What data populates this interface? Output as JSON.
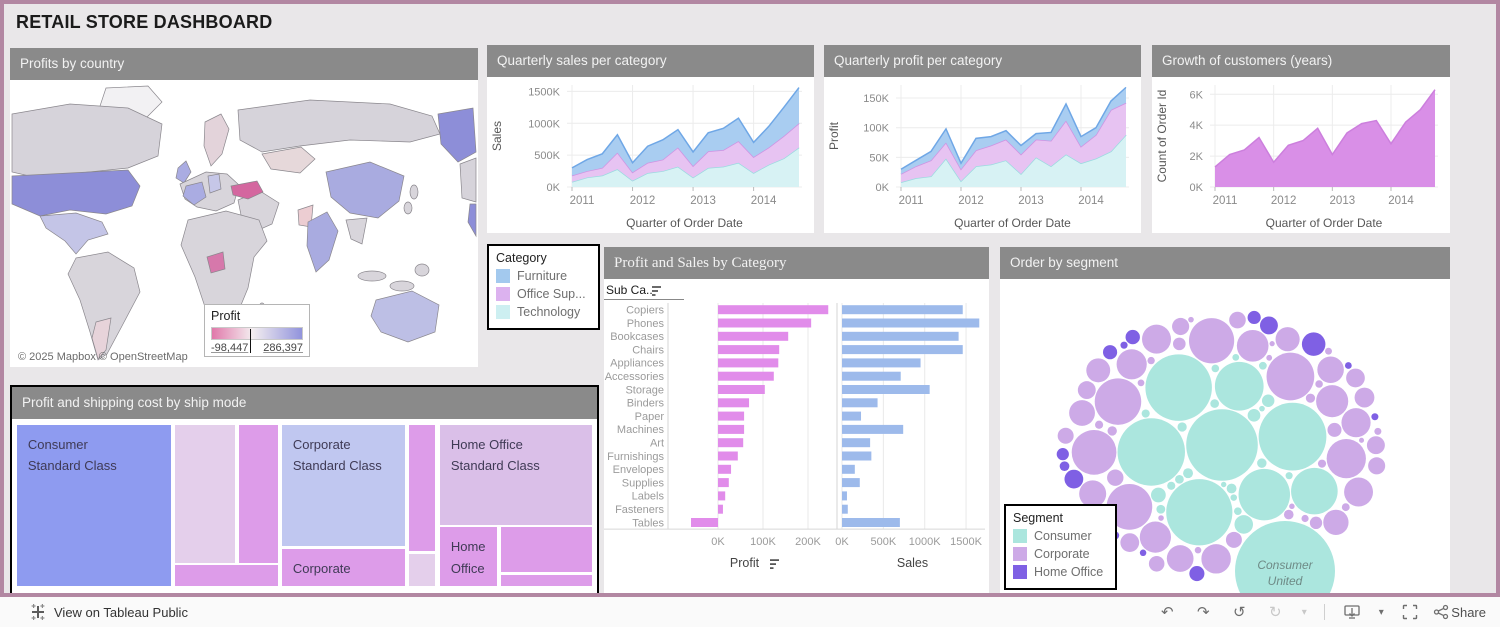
{
  "page": {
    "title": "RETAIL STORE DASHBOARD"
  },
  "map_panel": {
    "title": "Profits by country",
    "legend_title": "Profit",
    "legend_min": "-98,447",
    "legend_max": "286,397",
    "attribution": "© 2025 Mapbox © OpenStreetMap",
    "country_colors": {
      "usa": "#8d8ed8",
      "alaska": "#8d8ed8",
      "canada": "#d6d3da",
      "canada_e": "#d6d3da",
      "mexico": "#c4c5e7",
      "south_america": "#d8d5db",
      "argentina": "#e7d3da",
      "greenland": "#f2f1f3",
      "uk": "#aaace2",
      "europe": "#d8d5db",
      "france": "#aaace2",
      "germany": "#c6c7e8",
      "scandinavia": "#e3d3da",
      "russia": "#d6d3da",
      "kazakhstan": "#e6d8da",
      "mideast": "#d8d5db",
      "turkey": "#d4679f",
      "africa": "#d8d5db",
      "nigeria": "#d678ab",
      "india": "#a9abe0",
      "pakistan": "#eccdd2",
      "china": "#a9abe0",
      "seasia": "#d8d5db",
      "japan": "#d8d5db",
      "australia": "#bdbfe5",
      "wrap_strip": "#8d8ed8"
    }
  },
  "category_legend": {
    "title": "Category",
    "items": [
      {
        "label": "Furniture",
        "color": "#a3c9ee"
      },
      {
        "label": "Office Sup...",
        "color": "#dcb2ef"
      },
      {
        "label": "Technology",
        "color": "#cdeff1"
      }
    ]
  },
  "segment_legend": {
    "title": "Segment",
    "items": [
      {
        "label": "Consumer",
        "color": "#abe6de"
      },
      {
        "label": "Corporate",
        "color": "#cdaae7"
      },
      {
        "label": "Home Office",
        "color": "#7f60e4"
      }
    ]
  },
  "chart_data": [
    {
      "id": "q_sales",
      "type": "area",
      "stacked": true,
      "title": "Quarterly sales per category",
      "ylabel": "Sales",
      "xlabel": "Quarter of Order Date",
      "ymax": 1600,
      "yticks": [
        0,
        500,
        1000,
        1500
      ],
      "ytick_labels": [
        "0K",
        "500K",
        "1000K",
        "1500K"
      ],
      "xtick_labels": [
        "2011",
        "2012",
        "2013",
        "2014"
      ],
      "series": [
        {
          "name": "Technology",
          "fill": "#d7f2f4",
          "stroke": "#9adbe0",
          "values": [
            80,
            150,
            180,
            280,
            100,
            220,
            250,
            320,
            150,
            300,
            320,
            380,
            220,
            350,
            450,
            620
          ]
        },
        {
          "name": "Office Supplies",
          "fill": "#e7c3f2",
          "stroke": "#cf92e2",
          "values": [
            100,
            100,
            120,
            260,
            130,
            160,
            180,
            300,
            180,
            260,
            260,
            340,
            250,
            270,
            350,
            380
          ]
        },
        {
          "name": "Furniture",
          "fill": "#a9cdf1",
          "stroke": "#6fa7e6",
          "values": [
            120,
            180,
            220,
            280,
            150,
            260,
            310,
            280,
            220,
            290,
            340,
            360,
            230,
            330,
            450,
            560
          ]
        }
      ]
    },
    {
      "id": "q_profit",
      "type": "area",
      "stacked": true,
      "title": "Quarterly profit per category",
      "ylabel": "Profit",
      "xlabel": "Quarter of Order Date",
      "ymax": 172,
      "yticks": [
        0,
        50,
        100,
        150
      ],
      "ytick_labels": [
        "0K",
        "50K",
        "100K",
        "150K"
      ],
      "xtick_labels": [
        "2011",
        "2012",
        "2013",
        "2014"
      ],
      "series": [
        {
          "name": "Technology",
          "fill": "#d7f2f4",
          "stroke": "#9adbe0",
          "values": [
            8,
            15,
            18,
            48,
            10,
            35,
            38,
            45,
            22,
            50,
            35,
            55,
            40,
            48,
            60,
            88
          ]
        },
        {
          "name": "Office Supplies",
          "fill": "#e7c3f2",
          "stroke": "#cf92e2",
          "values": [
            14,
            20,
            27,
            27,
            20,
            27,
            32,
            35,
            33,
            30,
            43,
            57,
            28,
            40,
            70,
            54
          ]
        },
        {
          "name": "Furniture",
          "fill": "#a9cdf1",
          "stroke": "#6fa7e6",
          "values": [
            8,
            10,
            15,
            23,
            10,
            20,
            15,
            15,
            15,
            10,
            14,
            28,
            17,
            12,
            15,
            26
          ]
        }
      ]
    },
    {
      "id": "growth",
      "type": "area",
      "stacked": false,
      "title": "Growth of customers (years)",
      "ylabel": "Count of Order Id",
      "xlabel": "Quarter of Order Date",
      "ymax": 6.6,
      "yticks": [
        0,
        2,
        4,
        6
      ],
      "ytick_labels": [
        "0K",
        "2K",
        "4K",
        "6K"
      ],
      "xtick_labels": [
        "2011",
        "2012",
        "2013",
        "2014"
      ],
      "series": [
        {
          "name": "Count of Order Id",
          "fill": "#d98fe7",
          "stroke": "#cc7fdd",
          "values": [
            1.3,
            2.1,
            2.4,
            3.2,
            1.6,
            2.7,
            3.0,
            3.8,
            2.1,
            3.5,
            4.1,
            4.3,
            2.8,
            4.2,
            5.0,
            6.3
          ]
        }
      ]
    },
    {
      "id": "subcat",
      "type": "bar",
      "title": "Profit and Sales by Category",
      "row_header": "Sub Ca..",
      "categories": [
        "Copiers",
        "Phones",
        "Bookcases",
        "Chairs",
        "Appliances",
        "Accessories",
        "Storage",
        "Binders",
        "Paper",
        "Machines",
        "Art",
        "Furnishings",
        "Envelopes",
        "Supplies",
        "Labels",
        "Fasteners",
        "Tables"
      ],
      "profit_k": [
        245,
        207,
        156,
        136,
        134,
        124,
        104,
        69,
        58,
        58,
        56,
        44,
        29,
        24,
        16,
        11,
        -60
      ],
      "sales_k": [
        1460,
        1660,
        1410,
        1460,
        950,
        710,
        1060,
        430,
        230,
        740,
        340,
        355,
        155,
        215,
        60,
        70,
        700
      ],
      "profit_axis": {
        "label": "Profit",
        "ticks": [
          0,
          100,
          200
        ],
        "tick_labels": [
          "0K",
          "100K",
          "200K"
        ]
      },
      "sales_axis": {
        "label": "Sales",
        "ticks": [
          0,
          500,
          1000,
          1500
        ],
        "tick_labels": [
          "0K",
          "500K",
          "1000K",
          "1500K"
        ]
      },
      "profit_color": "#e18cea",
      "sales_color": "#9dbaeb"
    },
    {
      "id": "bubbles",
      "type": "bubble",
      "title": "Order by segment",
      "labeled_bubble": {
        "label_line1": "Consumer",
        "label_line2": "United",
        "segment": "Consumer"
      }
    },
    {
      "id": "shipmode",
      "type": "treemap",
      "title": "Profit and shipping cost by ship mode",
      "tiles": [
        {
          "label": "Consumer\nStandard Class",
          "color": "#8e9bf0",
          "x": 0.5,
          "y": 3.5,
          "w": 26.5,
          "h": 93
        },
        {
          "label": "",
          "color": "#e4cfeb",
          "x": 27.7,
          "y": 3.5,
          "w": 10.4,
          "h": 79.5
        },
        {
          "label": "",
          "color": "#dd9ce9",
          "x": 38.8,
          "y": 3.5,
          "w": 6.6,
          "h": 79.5
        },
        {
          "label": "",
          "color": "#dd9ce9",
          "x": 27.7,
          "y": 84.5,
          "w": 17.7,
          "h": 12
        },
        {
          "label": "Corporate\nStandard Class",
          "color": "#c0c7f0",
          "x": 46.1,
          "y": 3.5,
          "w": 21.2,
          "h": 70
        },
        {
          "label": "Corporate",
          "color": "#dd9ce9",
          "x": 46.1,
          "y": 75,
          "w": 21.2,
          "h": 21.5
        },
        {
          "label": "",
          "color": "#dd9ce9",
          "x": 68.0,
          "y": 3.5,
          "w": 4.5,
          "h": 73
        },
        {
          "label": "",
          "color": "#e4cfeb",
          "x": 68.0,
          "y": 78,
          "w": 4.5,
          "h": 18.5
        },
        {
          "label": "Home Office\nStandard Class",
          "color": "#dabfe8",
          "x": 73.3,
          "y": 3.5,
          "w": 26.2,
          "h": 57.5
        },
        {
          "label": "Home\nOffice",
          "color": "#dd9ce9",
          "x": 73.3,
          "y": 62.5,
          "w": 9.8,
          "h": 34
        },
        {
          "label": "",
          "color": "#dd9ce9",
          "x": 83.9,
          "y": 62.5,
          "w": 15.6,
          "h": 26
        },
        {
          "label": "",
          "color": "#dd9ce9",
          "x": 83.9,
          "y": 90,
          "w": 15.6,
          "h": 6.5
        }
      ]
    }
  ],
  "toolbar": {
    "view_on": "View on Tableau Public",
    "share": "Share",
    "icons": [
      "undo",
      "redo",
      "revert",
      "refresh",
      "refresh-caret",
      "download",
      "download-caret",
      "fullscreen",
      "share"
    ]
  }
}
